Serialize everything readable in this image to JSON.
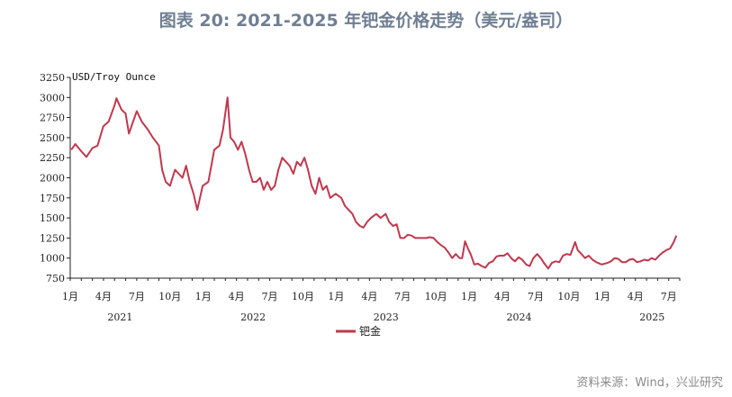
{
  "title": "图表 20: 2021-2025 年钯金价格走势（美元/盎司）",
  "source": "资料来源：Wind，兴业研究",
  "colors": {
    "series": "#c0384d",
    "axis": "#222222",
    "title": "#6f7f93"
  },
  "chart_data": {
    "type": "line",
    "unit_label": "USD/Troy Ounce",
    "ylim": [
      750,
      3250
    ],
    "yticks": [
      750,
      1000,
      1250,
      1500,
      1750,
      2000,
      2250,
      2500,
      2750,
      3000,
      3250
    ],
    "x_start": "2021-01",
    "x_end": "2025-08",
    "x_month_labels": [
      "1月",
      "4月",
      "7月",
      "10月",
      "1月",
      "4月",
      "7月",
      "10月",
      "1月",
      "4月",
      "7月",
      "10月",
      "1月",
      "4月",
      "7月",
      "10月",
      "1月",
      "4月",
      "7月"
    ],
    "x_year_labels": [
      "2021",
      "2022",
      "2023",
      "2024",
      "2025"
    ],
    "legend_position": "bottom-center",
    "grid": false,
    "series": [
      {
        "name": "钯金",
        "points": [
          [
            "2021-01-04",
            2350
          ],
          [
            "2021-01-15",
            2420
          ],
          [
            "2021-02-01",
            2330
          ],
          [
            "2021-02-15",
            2260
          ],
          [
            "2021-03-01",
            2370
          ],
          [
            "2021-03-15",
            2400
          ],
          [
            "2021-03-31",
            2640
          ],
          [
            "2021-04-15",
            2700
          ],
          [
            "2021-05-01",
            2900
          ],
          [
            "2021-05-06",
            2990
          ],
          [
            "2021-05-20",
            2850
          ],
          [
            "2021-06-01",
            2800
          ],
          [
            "2021-06-10",
            2550
          ],
          [
            "2021-06-20",
            2680
          ],
          [
            "2021-07-01",
            2830
          ],
          [
            "2021-07-15",
            2700
          ],
          [
            "2021-08-01",
            2600
          ],
          [
            "2021-08-15",
            2500
          ],
          [
            "2021-09-01",
            2400
          ],
          [
            "2021-09-10",
            2100
          ],
          [
            "2021-09-20",
            1950
          ],
          [
            "2021-10-01",
            1900
          ],
          [
            "2021-10-15",
            2100
          ],
          [
            "2021-10-25",
            2050
          ],
          [
            "2021-11-05",
            2000
          ],
          [
            "2021-11-15",
            2150
          ],
          [
            "2021-11-25",
            1950
          ],
          [
            "2021-12-05",
            1800
          ],
          [
            "2021-12-15",
            1600
          ],
          [
            "2021-12-30",
            1900
          ],
          [
            "2022-01-15",
            1950
          ],
          [
            "2022-02-01",
            2350
          ],
          [
            "2022-02-15",
            2400
          ],
          [
            "2022-02-25",
            2600
          ],
          [
            "2022-03-07",
            3000
          ],
          [
            "2022-03-15",
            2500
          ],
          [
            "2022-03-25",
            2450
          ],
          [
            "2022-04-05",
            2350
          ],
          [
            "2022-04-15",
            2450
          ],
          [
            "2022-04-25",
            2300
          ],
          [
            "2022-05-05",
            2100
          ],
          [
            "2022-05-15",
            1950
          ],
          [
            "2022-05-25",
            1950
          ],
          [
            "2022-06-05",
            2000
          ],
          [
            "2022-06-15",
            1850
          ],
          [
            "2022-06-25",
            1950
          ],
          [
            "2022-07-05",
            1850
          ],
          [
            "2022-07-15",
            1900
          ],
          [
            "2022-07-25",
            2100
          ],
          [
            "2022-08-05",
            2250
          ],
          [
            "2022-08-15",
            2200
          ],
          [
            "2022-08-25",
            2150
          ],
          [
            "2022-09-05",
            2050
          ],
          [
            "2022-09-15",
            2200
          ],
          [
            "2022-09-25",
            2150
          ],
          [
            "2022-10-05",
            2250
          ],
          [
            "2022-10-15",
            2100
          ],
          [
            "2022-10-25",
            1900
          ],
          [
            "2022-11-05",
            1800
          ],
          [
            "2022-11-15",
            2000
          ],
          [
            "2022-11-25",
            1850
          ],
          [
            "2022-12-05",
            1900
          ],
          [
            "2022-12-15",
            1750
          ],
          [
            "2022-12-30",
            1800
          ],
          [
            "2023-01-15",
            1750
          ],
          [
            "2023-01-25",
            1650
          ],
          [
            "2023-02-05",
            1600
          ],
          [
            "2023-02-15",
            1550
          ],
          [
            "2023-02-25",
            1450
          ],
          [
            "2023-03-05",
            1400
          ],
          [
            "2023-03-15",
            1380
          ],
          [
            "2023-03-25",
            1450
          ],
          [
            "2023-04-05",
            1500
          ],
          [
            "2023-04-20",
            1550
          ],
          [
            "2023-05-01",
            1500
          ],
          [
            "2023-05-15",
            1550
          ],
          [
            "2023-05-25",
            1450
          ],
          [
            "2023-06-05",
            1400
          ],
          [
            "2023-06-15",
            1420
          ],
          [
            "2023-06-25",
            1250
          ],
          [
            "2023-07-05",
            1250
          ],
          [
            "2023-07-15",
            1290
          ],
          [
            "2023-07-25",
            1280
          ],
          [
            "2023-08-05",
            1250
          ],
          [
            "2023-08-15",
            1250
          ],
          [
            "2023-08-25",
            1250
          ],
          [
            "2023-09-05",
            1250
          ],
          [
            "2023-09-15",
            1260
          ],
          [
            "2023-09-25",
            1250
          ],
          [
            "2023-10-05",
            1200
          ],
          [
            "2023-10-15",
            1160
          ],
          [
            "2023-10-25",
            1130
          ],
          [
            "2023-11-05",
            1070
          ],
          [
            "2023-11-15",
            1000
          ],
          [
            "2023-11-25",
            1050
          ],
          [
            "2023-12-05",
            1000
          ],
          [
            "2023-12-12",
            1000
          ],
          [
            "2023-12-20",
            1210
          ],
          [
            "2023-12-28",
            1120
          ],
          [
            "2024-01-05",
            1050
          ],
          [
            "2024-01-15",
            920
          ],
          [
            "2024-01-25",
            930
          ],
          [
            "2024-02-05",
            900
          ],
          [
            "2024-02-15",
            880
          ],
          [
            "2024-02-25",
            940
          ],
          [
            "2024-03-05",
            960
          ],
          [
            "2024-03-15",
            1020
          ],
          [
            "2024-03-25",
            1030
          ],
          [
            "2024-04-05",
            1030
          ],
          [
            "2024-04-15",
            1060
          ],
          [
            "2024-04-25",
            1000
          ],
          [
            "2024-05-05",
            960
          ],
          [
            "2024-05-15",
            1010
          ],
          [
            "2024-05-25",
            980
          ],
          [
            "2024-06-05",
            920
          ],
          [
            "2024-06-15",
            900
          ],
          [
            "2024-06-25",
            1000
          ],
          [
            "2024-07-05",
            1050
          ],
          [
            "2024-07-15",
            1000
          ],
          [
            "2024-07-25",
            930
          ],
          [
            "2024-08-05",
            870
          ],
          [
            "2024-08-15",
            940
          ],
          [
            "2024-08-25",
            960
          ],
          [
            "2024-09-05",
            950
          ],
          [
            "2024-09-15",
            1030
          ],
          [
            "2024-09-25",
            1050
          ],
          [
            "2024-10-05",
            1040
          ],
          [
            "2024-10-18",
            1200
          ],
          [
            "2024-10-25",
            1100
          ],
          [
            "2024-11-05",
            1050
          ],
          [
            "2024-11-15",
            1000
          ],
          [
            "2024-11-25",
            1030
          ],
          [
            "2024-12-05",
            980
          ],
          [
            "2024-12-15",
            950
          ],
          [
            "2024-12-30",
            920
          ],
          [
            "2025-01-15",
            940
          ],
          [
            "2025-01-25",
            960
          ],
          [
            "2025-02-05",
            1000
          ],
          [
            "2025-02-15",
            990
          ],
          [
            "2025-02-25",
            950
          ],
          [
            "2025-03-05",
            950
          ],
          [
            "2025-03-15",
            980
          ],
          [
            "2025-03-25",
            990
          ],
          [
            "2025-04-05",
            950
          ],
          [
            "2025-04-15",
            960
          ],
          [
            "2025-04-25",
            980
          ],
          [
            "2025-05-05",
            970
          ],
          [
            "2025-05-15",
            1000
          ],
          [
            "2025-05-25",
            980
          ],
          [
            "2025-06-05",
            1030
          ],
          [
            "2025-06-15",
            1070
          ],
          [
            "2025-06-25",
            1100
          ],
          [
            "2025-07-05",
            1120
          ],
          [
            "2025-07-15",
            1200
          ],
          [
            "2025-07-22",
            1280
          ]
        ]
      }
    ]
  }
}
